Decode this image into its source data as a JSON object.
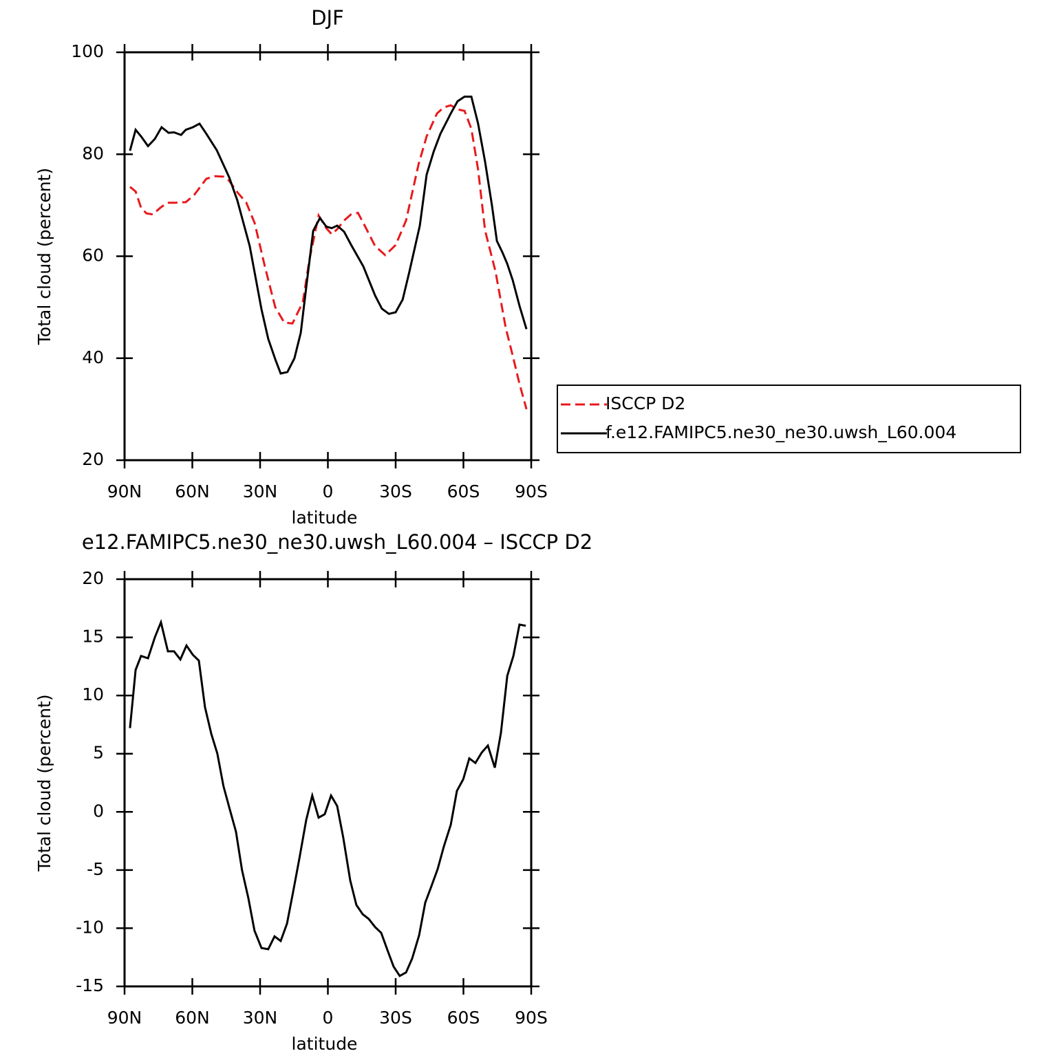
{
  "chart_data": [
    {
      "type": "line",
      "title": "DJF",
      "xlabel": "latitude",
      "ylabel": "Total cloud (percent)",
      "xlim": [
        90,
        -90
      ],
      "xticks": [
        {
          "value": 90,
          "label": "90N"
        },
        {
          "value": 60,
          "label": "60N"
        },
        {
          "value": 30,
          "label": "30N"
        },
        0,
        {
          "value": -30,
          "label": "30S"
        },
        {
          "value": -60,
          "label": "60S"
        },
        {
          "value": -90,
          "label": "90S"
        }
      ],
      "ylim": [
        20,
        100
      ],
      "yticks": [
        20,
        40,
        60,
        80,
        100
      ],
      "legend": "right",
      "series": [
        {
          "name": "ISCCP D2",
          "color": "#e8191c",
          "dash": true,
          "x": [
            87.6,
            85.1,
            82.7,
            80.3,
            77.5,
            74.2,
            71.1,
            67.5,
            62.9,
            59.2,
            53.8,
            49.8,
            46.1,
            43.7,
            40.0,
            36.1,
            32.4,
            27.9,
            23.3,
            19.3,
            15.7,
            11.1,
            8.1,
            4.1,
            0.7,
            -1.7,
            -4.1,
            -7.2,
            -10.2,
            -13.3,
            -16.3,
            -20.9,
            -25.4,
            -30.0,
            -34.6,
            -40.1,
            -43.7,
            -48.3,
            -51.3,
            -54.4,
            -57.4,
            -60.5,
            -63.5,
            -66.5,
            -69.6,
            -74.2,
            -78.7,
            -81.8,
            -84.8,
            -87.9
          ],
          "values": [
            73.6,
            72.7,
            69.5,
            68.4,
            68.2,
            69.5,
            70.5,
            70.5,
            70.6,
            72,
            75.2,
            75.7,
            75.6,
            74.8,
            72.5,
            70.5,
            66.5,
            58,
            50,
            47,
            46.8,
            51,
            59.5,
            68,
            65.5,
            64.3,
            65.3,
            67,
            68.2,
            68.5,
            66,
            62,
            60.2,
            62.2,
            67,
            78,
            83.5,
            88,
            89.2,
            89.6,
            88.8,
            88.5,
            85,
            77,
            65,
            57,
            46,
            40.5,
            35,
            30
          ]
        },
        {
          "name": "f.e12.FAMIPC5.ne30_ne30.uwsh_L60.004",
          "color": "#000000",
          "dash": false,
          "x": [
            87.6,
            85.1,
            82.7,
            79.6,
            76.6,
            73.6,
            70.5,
            68.1,
            65.0,
            62.9,
            59.8,
            56.8,
            53.8,
            49.2,
            43.7,
            40.1,
            34.6,
            29.4,
            26.4,
            23.3,
            20.9,
            17.9,
            14.8,
            12.0,
            9.3,
            6.5,
            3.5,
            0.7,
            -1.7,
            -4.1,
            -7.2,
            -10.2,
            -15.7,
            -20.9,
            -23.9,
            -27.0,
            -30.0,
            -33.1,
            -36.1,
            -40.7,
            -43.7,
            -46.8,
            -49.8,
            -54.4,
            -57.4,
            -60.5,
            -63.5,
            -66.5,
            -69.6,
            -72.6,
            -74.8,
            -77.2,
            -79.4,
            -81.8,
            -84.8,
            -87.9
          ],
          "values": [
            80.7,
            84.8,
            83.5,
            81.6,
            83,
            85.3,
            84.2,
            84.3,
            83.8,
            84.8,
            85.3,
            86,
            84,
            80.8,
            75.5,
            71,
            62,
            49.6,
            43.8,
            39.8,
            37,
            37.3,
            40,
            45,
            55,
            65,
            67.5,
            65.8,
            65.5,
            66,
            64.8,
            62.3,
            58,
            52.3,
            49.7,
            48.7,
            49,
            51.5,
            57,
            66,
            76,
            80.5,
            84,
            88,
            90.4,
            91.3,
            91.3,
            86,
            78.5,
            70,
            63,
            60.8,
            58.5,
            55.3,
            50.3,
            45.7
          ]
        }
      ]
    },
    {
      "type": "line",
      "title": "e12.FAMIPC5.ne30_ne30.uwsh_L60.004 – ISCCP D2",
      "xlabel": "latitude",
      "ylabel": "Total cloud (percent)",
      "xlim": [
        90,
        -90
      ],
      "xticks": [
        {
          "value": 90,
          "label": "90N"
        },
        {
          "value": 60,
          "label": "60N"
        },
        {
          "value": 30,
          "label": "30N"
        },
        0,
        {
          "value": -30,
          "label": "30S"
        },
        {
          "value": -60,
          "label": "60S"
        },
        {
          "value": -90,
          "label": "90S"
        }
      ],
      "ylim": [
        -15,
        20
      ],
      "yticks": [
        -15,
        -10,
        -5,
        0,
        5,
        10,
        15,
        20
      ],
      "series": [
        {
          "color": "#000000",
          "dash": false,
          "x": [
            87.6,
            85.1,
            82.7,
            79.6,
            76.6,
            73.9,
            70.8,
            68.1,
            65.3,
            62.6,
            59.8,
            57.1,
            54.4,
            51.6,
            48.9,
            46.2,
            43.4,
            40.7,
            38.0,
            35.2,
            32.5,
            29.4,
            26.4,
            23.6,
            20.9,
            18.1,
            15.4,
            12.6,
            9.6,
            6.9,
            4.1,
            1.4,
            -1.4,
            -4.1,
            -6.8,
            -9.9,
            -12.6,
            -15.4,
            -18.1,
            -20.9,
            -23.6,
            -26.4,
            -29.1,
            -31.8,
            -34.6,
            -37.3,
            -40.4,
            -43.1,
            -45.8,
            -48.6,
            -51.3,
            -54.4,
            -57.1,
            -59.9,
            -62.6,
            -65.3,
            -68.1,
            -70.8,
            -73.9,
            -76.6,
            -79.4,
            -82.1,
            -84.8,
            -87.6
          ],
          "values": [
            7.2,
            12.2,
            13.4,
            13.2,
            15,
            16.3,
            13.8,
            13.8,
            13.1,
            14.3,
            13.5,
            13,
            9,
            6.7,
            5,
            2.2,
            0.2,
            -1.7,
            -5,
            -7.4,
            -10.2,
            -11.7,
            -11.8,
            -10.7,
            -11.1,
            -9.6,
            -6.9,
            -4,
            -0.7,
            1.4,
            -0.5,
            -0.2,
            1.4,
            0.5,
            -2.2,
            -5.9,
            -8,
            -8.8,
            -9.2,
            -9.9,
            -10.4,
            -11.9,
            -13.3,
            -14.1,
            -13.8,
            -12.6,
            -10.6,
            -7.8,
            -6.4,
            -4.9,
            -3,
            -1.1,
            1.8,
            2.8,
            4.6,
            4.2,
            5.1,
            5.7,
            3.8,
            6.8,
            11.7,
            13.4,
            16.1,
            16
          ]
        }
      ]
    }
  ]
}
